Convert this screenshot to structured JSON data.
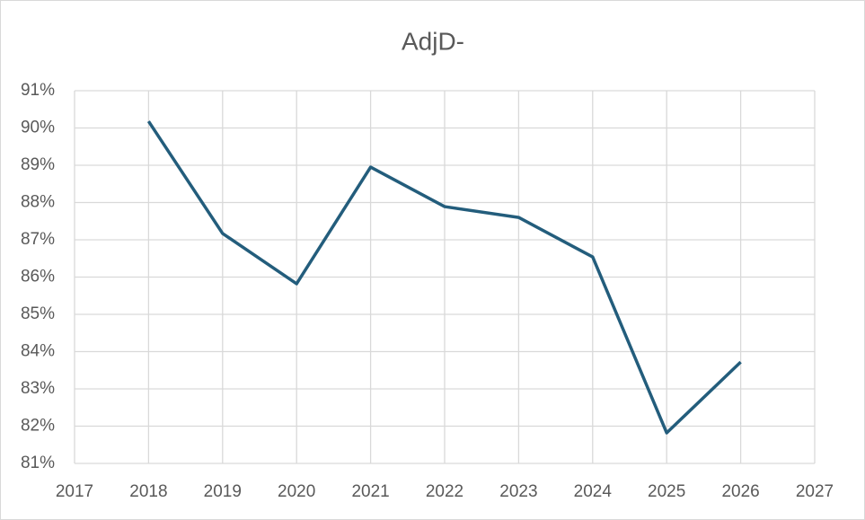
{
  "chart_data": {
    "type": "line",
    "title": "AdjD-",
    "x": [
      2018,
      2019,
      2020,
      2021,
      2022,
      2023,
      2024,
      2025,
      2026
    ],
    "series": [
      {
        "name": "AdjD-",
        "color": "#235d7c",
        "values": [
          90.18,
          87.17,
          85.82,
          88.95,
          87.89,
          87.6,
          86.54,
          81.82,
          83.72
        ]
      }
    ],
    "xlim": [
      2017,
      2027
    ],
    "xticks": [
      2017,
      2018,
      2019,
      2020,
      2021,
      2022,
      2023,
      2024,
      2025,
      2026,
      2027
    ],
    "ylim": [
      81,
      91
    ],
    "yticks": [
      {
        "value": 81,
        "label": "81%"
      },
      {
        "value": 82,
        "label": "82%"
      },
      {
        "value": 83,
        "label": "83%"
      },
      {
        "value": 84,
        "label": "84%"
      },
      {
        "value": 85,
        "label": "85%"
      },
      {
        "value": 86,
        "label": "86%"
      },
      {
        "value": 87,
        "label": "87%"
      },
      {
        "value": 88,
        "label": "88%"
      },
      {
        "value": 89,
        "label": "89%"
      },
      {
        "value": 90,
        "label": "90%"
      },
      {
        "value": 91,
        "label": "91%"
      }
    ],
    "grid": true
  }
}
